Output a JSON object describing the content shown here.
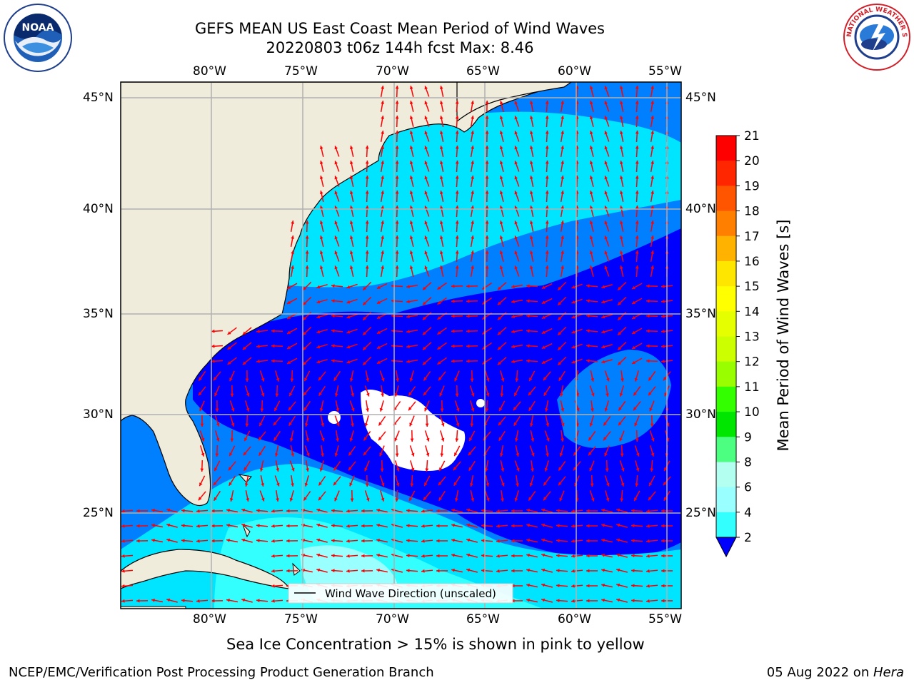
{
  "header": {
    "title_line1": "GEFS MEAN US East Coast Mean Period of Wind Waves",
    "title_line2": "20220803 t06z 144h fcst   Max: 8.46"
  },
  "logos": {
    "left": {
      "text": "NOAA",
      "ring_text": "NATIONAL OCEANIC AND ATMOSPHERIC ADMINISTRATION · U.S. DEPARTMENT OF COMMERCE",
      "icon": "noaa-logo-icon"
    },
    "right": {
      "ring_text": "NATIONAL WEATHER SERVICE",
      "icon": "nws-logo-icon"
    }
  },
  "map": {
    "lon_labels": [
      "80°W",
      "75°W",
      "70°W",
      "65°W",
      "60°W",
      "55°W"
    ],
    "lat_labels": [
      "45°N",
      "40°N",
      "35°N",
      "30°N",
      "25°N"
    ],
    "legend_label": "Wind Wave Direction (unscaled)",
    "land_color": "#efecdc",
    "vector_color": "#ff0000",
    "grid_color": "#b0b0b0"
  },
  "colorbar": {
    "label": "Mean Period of Wind Waves [s]",
    "ticks": [
      "2",
      "4",
      "6",
      "8",
      "9",
      "10",
      "11",
      "12",
      "13",
      "14",
      "15",
      "16",
      "17",
      "18",
      "19",
      "20",
      "21"
    ],
    "colors": [
      "#0000ff",
      "#0080ff",
      "#00e5ff",
      "#33ffff",
      "#99ffff",
      "#b3fff0",
      "#4dff80",
      "#00e600",
      "#33ff00",
      "#99ff00",
      "#ccff00",
      "#e6ff00",
      "#ffff00",
      "#ffe600",
      "#ffb300",
      "#ff8000",
      "#ff5500",
      "#ff2600",
      "#ff0000"
    ]
  },
  "notes": {
    "sea_ice": "Sea Ice Concentration > 15% is shown in pink to yellow"
  },
  "footer": {
    "left": "NCEP/EMC/Verification Post Processing Product Generation Branch",
    "right_date": "05 Aug 2022 on ",
    "right_host": "Hera"
  }
}
